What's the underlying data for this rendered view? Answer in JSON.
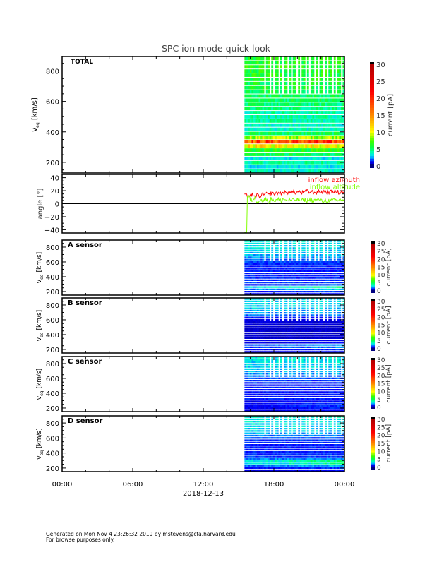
{
  "chart_data": {
    "type": "heatmap",
    "title": "SPC ion mode quick look",
    "x_ticks": [
      "00:00",
      "06:00",
      "12:00",
      "18:00",
      "00:00"
    ],
    "x_range_hours": [
      0,
      24
    ],
    "x_date_label": "2018-12-13",
    "data_start_hour": 15.5,
    "colorbar": {
      "label": "current [pA]",
      "ticks": [
        "0",
        "5",
        "10",
        "15",
        "20",
        "25",
        "30"
      ],
      "range": [
        0,
        30
      ]
    },
    "panels": [
      {
        "name": "TOTAL",
        "ylabel": "v",
        "ylabel_sub": "eq",
        "ylabel_unit": "[km/s]",
        "y_ticks": [
          200,
          400,
          600,
          800
        ],
        "y_range": [
          130,
          895
        ],
        "gap_above": 640,
        "row_profile": [
          3.5,
          3,
          4,
          3,
          5,
          6,
          11,
          18,
          9,
          5,
          3.5,
          3.5,
          4,
          4,
          4,
          4.5,
          4.5,
          5,
          5,
          5,
          5.5,
          5.5,
          6,
          6,
          6,
          6,
          6,
          6
        ]
      },
      {
        "name": "A sensor",
        "ylabel": "v",
        "ylabel_sub": "eq",
        "ylabel_unit": "[km/s]",
        "y_ticks": [
          200,
          400,
          600,
          800
        ],
        "y_range": [
          152,
          895
        ],
        "gap_above": 620,
        "row_profile": [
          1.2,
          1.8,
          3.2,
          4.5,
          2,
          1.4,
          1.3,
          1.3,
          1.2,
          1.2,
          1.2,
          1.2,
          1.2,
          1.3,
          1.5,
          1.8,
          2.2,
          2.5,
          2.6,
          2.8,
          2.8,
          2.9,
          3,
          3
        ]
      },
      {
        "name": "B sensor",
        "ylabel": "v",
        "ylabel_sub": "eq",
        "ylabel_unit": "[km/s]",
        "y_ticks": [
          200,
          400,
          600,
          800
        ],
        "y_range": [
          152,
          895
        ],
        "gap_above": 600,
        "row_profile": [
          1.2,
          1.5,
          2.2,
          2.5,
          1.2,
          0.8,
          0.6,
          0.6,
          0.6,
          0.6,
          0.6,
          0.6,
          0.7,
          0.7,
          0.8,
          1.2,
          1.8,
          2.2,
          2.4,
          2.6,
          2.7,
          2.8,
          2.9,
          3
        ]
      },
      {
        "name": "C sensor",
        "ylabel": "v",
        "ylabel_sub": "eq",
        "ylabel_unit": "[km/s]",
        "y_ticks": [
          200,
          400,
          600,
          800
        ],
        "y_range": [
          152,
          895
        ],
        "gap_above": 620,
        "row_profile": [
          1.2,
          1.4,
          1.6,
          1.5,
          1.3,
          1.2,
          1.1,
          1.1,
          1.1,
          1.1,
          1.2,
          1.2,
          1.3,
          1.4,
          1.6,
          1.9,
          2.2,
          2.4,
          2.6,
          2.7,
          2.8,
          2.9,
          3,
          3
        ]
      },
      {
        "name": "D sensor",
        "ylabel": "v",
        "ylabel_sub": "eq",
        "ylabel_unit": "[km/s]",
        "y_ticks": [
          200,
          400,
          600,
          800
        ],
        "y_range": [
          152,
          895
        ],
        "gap_above": 640,
        "row_profile": [
          1.2,
          1.6,
          2.8,
          4.5,
          5,
          2,
          1.4,
          1.3,
          1.2,
          1.2,
          1.2,
          1.2,
          1.3,
          1.4,
          1.6,
          1.9,
          2.3,
          2.6,
          2.8,
          2.9,
          3,
          3,
          3.1,
          3.2
        ]
      }
    ],
    "angle_panel": {
      "ylabel": "angle [°]",
      "y_ticks": [
        -40,
        -20,
        0,
        20,
        40
      ],
      "y_range": [
        -45,
        45
      ],
      "series": [
        {
          "name": "inflow azimuth",
          "color": "#ff0000",
          "x": [
            15.5,
            15.75,
            16,
            16.25,
            16.5,
            16.75,
            17,
            17.25,
            17.5,
            17.75,
            18,
            18.25,
            18.5,
            18.75,
            19,
            19.25,
            19.5,
            19.75,
            20,
            20.25,
            20.5,
            20.75,
            21,
            21.25,
            21.5,
            21.75,
            22,
            22.25,
            22.5,
            22.75,
            23,
            23.25,
            23.5,
            23.75,
            24
          ],
          "values": [
            15,
            12,
            14,
            10,
            13,
            11,
            14,
            15,
            14,
            16,
            15,
            17,
            16,
            17,
            16,
            19,
            18,
            17,
            18,
            17,
            18,
            19,
            18,
            18,
            17,
            18,
            18,
            19,
            18,
            18,
            19,
            18,
            17,
            18,
            16
          ]
        },
        {
          "name": "inflow altitude",
          "color": "#80ff00",
          "x": [
            15.5,
            15.75,
            16,
            16.25,
            16.5,
            16.75,
            17,
            17.25,
            17.5,
            17.75,
            18,
            18.25,
            18.5,
            18.75,
            19,
            19.25,
            19.5,
            19.75,
            20,
            20.25,
            20.5,
            20.75,
            21,
            21.25,
            21.5,
            21.75,
            22,
            22.25,
            22.5,
            22.75,
            23,
            23.25,
            23.5,
            23.75,
            24
          ],
          "values": [
            -44,
            10,
            6,
            8,
            4,
            7,
            5,
            6,
            4,
            7,
            5,
            6,
            5,
            7,
            5,
            6,
            5,
            6,
            6,
            5,
            6,
            5,
            6,
            5,
            5,
            6,
            4,
            5,
            5,
            4,
            5,
            5,
            6,
            6,
            7
          ]
        }
      ]
    }
  },
  "footer": {
    "line1": "Generated on Mon Nov  4 23:26:32 2019 by mstevens@cfa.harvard.edu",
    "line2": "For browse purposes only."
  }
}
